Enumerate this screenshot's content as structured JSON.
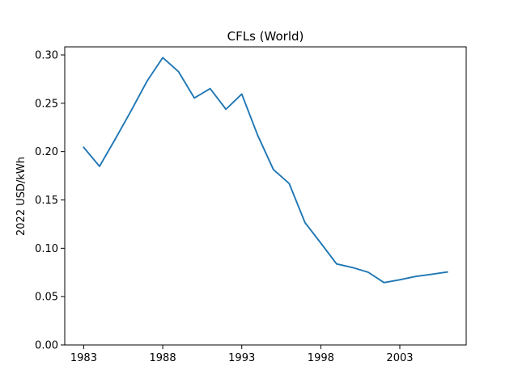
{
  "chart_data": {
    "type": "line",
    "title": "CFLs (World)",
    "xlabel": "",
    "ylabel": "2022 USD/kWh",
    "xlim": [
      1981.8,
      2007.2
    ],
    "ylim": [
      0.0,
      0.30835
    ],
    "xticks": [
      1983,
      1988,
      1993,
      1998,
      2003
    ],
    "xtick_labels": [
      "1983",
      "1988",
      "1993",
      "1998",
      "2003"
    ],
    "yticks": [
      0.0,
      0.05,
      0.1,
      0.15,
      0.2,
      0.25,
      0.3
    ],
    "ytick_labels": [
      "0.00",
      "0.05",
      "0.10",
      "0.15",
      "0.20",
      "0.25",
      "0.30"
    ],
    "grid": false,
    "series": [
      {
        "color": "#1f77b4",
        "x": [
          1983,
          1984,
          1985,
          1986,
          1987,
          1988,
          1989,
          1990,
          1991,
          1992,
          1993,
          1994,
          1995,
          1996,
          1997,
          1998,
          1999,
          2000,
          2001,
          2002,
          2003,
          2004,
          2005,
          2006
        ],
        "y": [
          0.2043,
          0.1848,
          0.2131,
          0.2423,
          0.2727,
          0.2972,
          0.2827,
          0.2554,
          0.2652,
          0.2438,
          0.2595,
          0.2171,
          0.1815,
          0.167,
          0.1266,
          0.1054,
          0.0838,
          0.0801,
          0.0752,
          0.0645,
          0.0674,
          0.0709,
          0.0731,
          0.0755
        ]
      }
    ]
  }
}
